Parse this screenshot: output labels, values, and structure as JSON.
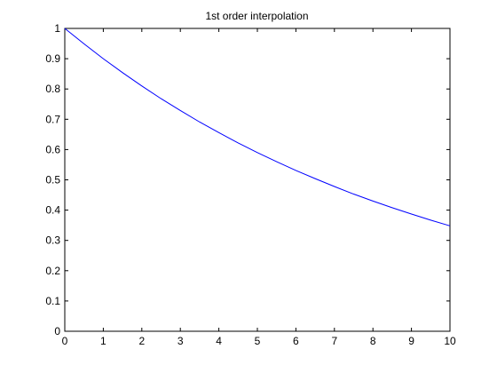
{
  "chart_data": {
    "type": "line",
    "title": "1st order interpolation",
    "xlabel": "",
    "ylabel": "",
    "xlim": [
      0,
      10
    ],
    "ylim": [
      0,
      1
    ],
    "x_ticks": [
      "0",
      "1",
      "2",
      "3",
      "4",
      "5",
      "6",
      "7",
      "8",
      "9",
      "10"
    ],
    "y_ticks": [
      "0",
      "0.1",
      "0.2",
      "0.3",
      "0.4",
      "0.5",
      "0.6",
      "0.7",
      "0.8",
      "0.9",
      "1"
    ],
    "grid": false,
    "series": [
      {
        "color": "#0000ff",
        "x": [
          0,
          0.5,
          1,
          1.5,
          2,
          2.5,
          3,
          3.5,
          4,
          4.5,
          5,
          5.5,
          6,
          6.5,
          7,
          7.5,
          8,
          8.5,
          9,
          9.5,
          10
        ],
        "y": [
          1.0,
          0.949,
          0.9,
          0.854,
          0.81,
          0.768,
          0.729,
          0.691,
          0.656,
          0.622,
          0.59,
          0.56,
          0.531,
          0.504,
          0.478,
          0.453,
          0.43,
          0.408,
          0.387,
          0.367,
          0.348
        ]
      }
    ]
  }
}
